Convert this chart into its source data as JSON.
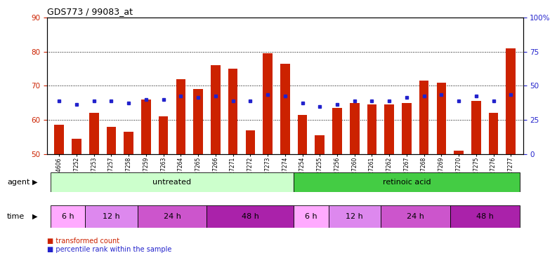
{
  "title": "GDS773 / 99083_at",
  "samples": [
    "GSM24606",
    "GSM27252",
    "GSM27253",
    "GSM27257",
    "GSM27258",
    "GSM27259",
    "GSM27263",
    "GSM27264",
    "GSM27265",
    "GSM27266",
    "GSM27271",
    "GSM27272",
    "GSM27273",
    "GSM27274",
    "GSM27254",
    "GSM27255",
    "GSM27256",
    "GSM27260",
    "GSM27261",
    "GSM27262",
    "GSM27267",
    "GSM27268",
    "GSM27269",
    "GSM27270",
    "GSM27275",
    "GSM27276",
    "GSM27277"
  ],
  "bar_values": [
    58.5,
    54.5,
    62.0,
    58.0,
    56.5,
    66.0,
    61.0,
    72.0,
    69.0,
    76.0,
    75.0,
    57.0,
    79.5,
    76.5,
    61.5,
    55.5,
    63.5,
    65.0,
    64.5,
    64.5,
    65.0,
    71.5,
    71.0,
    51.0,
    65.5,
    62.0,
    81.0
  ],
  "blue_dot_values": [
    65.5,
    64.5,
    65.5,
    65.5,
    65.0,
    66.0,
    66.0,
    67.0,
    66.5,
    67.0,
    65.5,
    65.5,
    67.5,
    67.0,
    65.0,
    64.0,
    64.5,
    65.5,
    65.5,
    65.5,
    66.5,
    67.0,
    67.5,
    65.5,
    67.0,
    65.5,
    67.5
  ],
  "ymin": 50,
  "ymax": 90,
  "yticks_left": [
    50,
    60,
    70,
    80,
    90
  ],
  "bar_color": "#cc2200",
  "dot_color": "#2222cc",
  "agent_groups": [
    {
      "label": "untreated",
      "start": 0,
      "end": 13,
      "color": "#ccffcc"
    },
    {
      "label": "retinoic acid",
      "start": 14,
      "end": 26,
      "color": "#44cc44"
    }
  ],
  "time_groups": [
    {
      "label": "6 h",
      "start": 0,
      "end": 1,
      "color": "#ffaaff"
    },
    {
      "label": "12 h",
      "start": 2,
      "end": 4,
      "color": "#dd88ee"
    },
    {
      "label": "24 h",
      "start": 5,
      "end": 8,
      "color": "#cc55cc"
    },
    {
      "label": "48 h",
      "start": 9,
      "end": 13,
      "color": "#aa22aa"
    },
    {
      "label": "6 h",
      "start": 14,
      "end": 15,
      "color": "#ffaaff"
    },
    {
      "label": "12 h",
      "start": 16,
      "end": 18,
      "color": "#dd88ee"
    },
    {
      "label": "24 h",
      "start": 19,
      "end": 22,
      "color": "#cc55cc"
    },
    {
      "label": "48 h",
      "start": 23,
      "end": 26,
      "color": "#aa22aa"
    }
  ],
  "xlabel_agent": "agent",
  "xlabel_time": "time",
  "bar_color_hex": "#cc2200",
  "dot_color_hex": "#2222cc",
  "tick_color_left": "#cc2200",
  "tick_color_right": "#2222cc"
}
